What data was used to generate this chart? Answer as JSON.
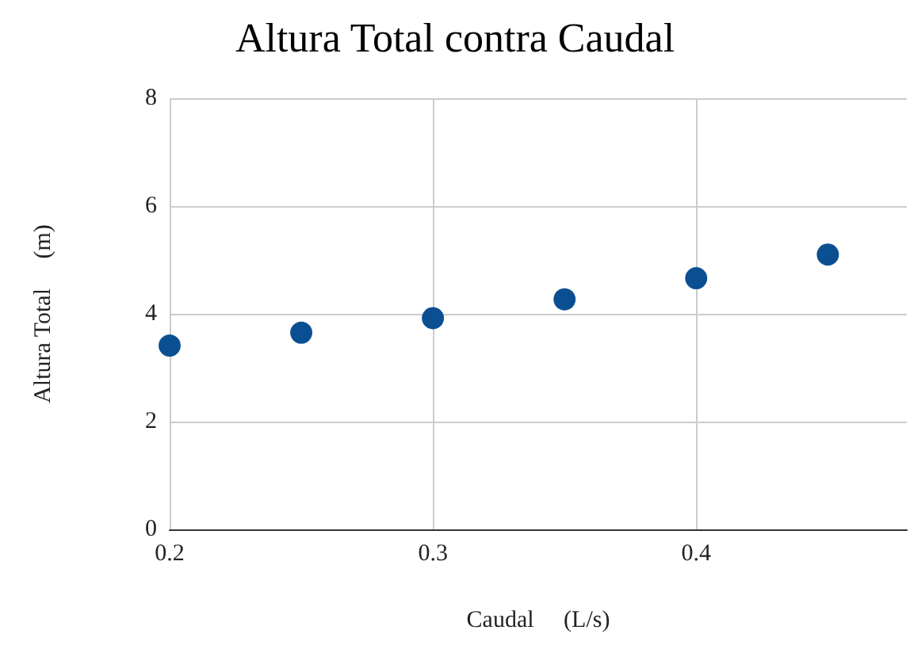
{
  "chart_data": {
    "type": "scatter",
    "title": "Altura Total contra Caudal",
    "xlabel": "Caudal     (L/s)",
    "ylabel": "Altura Total     (m)",
    "x": [
      0.2,
      0.25,
      0.3,
      0.35,
      0.4,
      0.45
    ],
    "series": [
      {
        "color": "#0b4f93",
        "values": [
          3.41,
          3.65,
          3.92,
          4.27,
          4.66,
          5.1
        ]
      }
    ],
    "xlim": [
      0.2,
      0.48
    ],
    "xticks": [
      0.2,
      0.3,
      0.4
    ],
    "ylim": [
      0,
      8
    ],
    "yticks": [
      0,
      2,
      4,
      6,
      8
    ],
    "grid": true,
    "marker": "circle"
  }
}
